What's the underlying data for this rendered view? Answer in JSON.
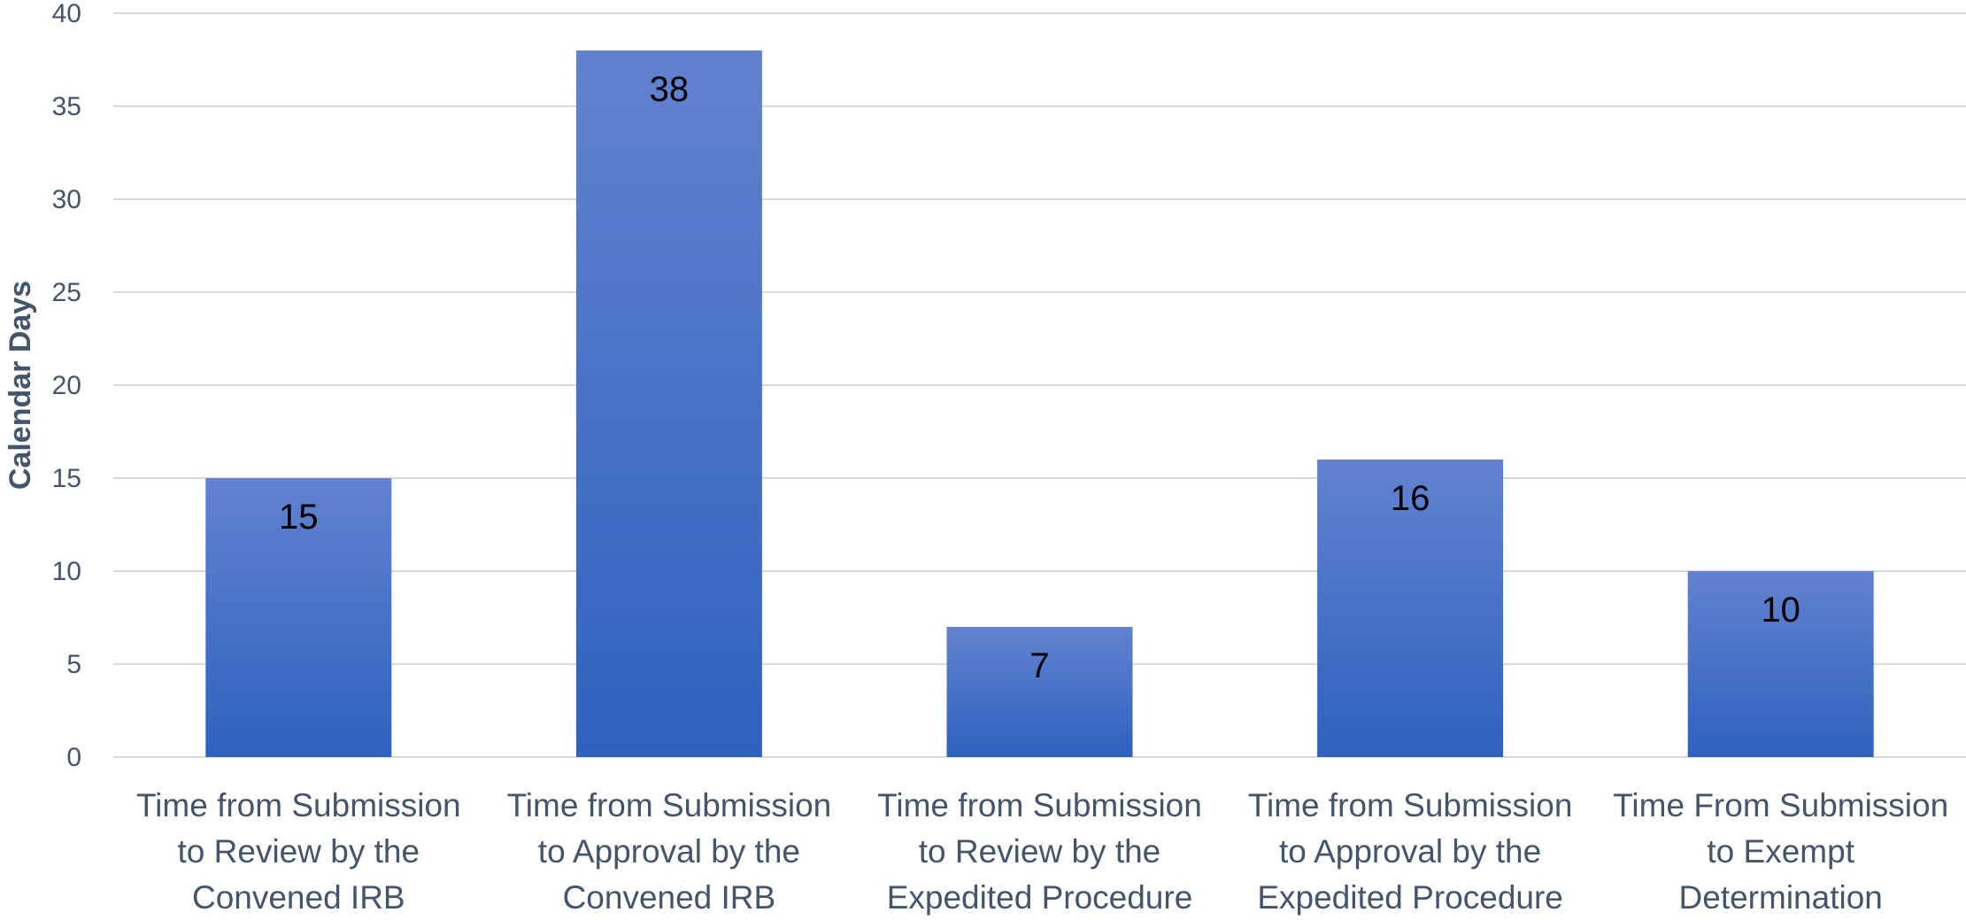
{
  "chart_data": {
    "type": "bar",
    "ylabel": "Calendar Days",
    "xlabel": "",
    "ylim": [
      0,
      40
    ],
    "y_ticks": [
      0,
      5,
      10,
      15,
      20,
      25,
      30,
      35,
      40
    ],
    "grid": true,
    "legend": "none",
    "categories": [
      [
        "Time from Submission",
        "to Review by the",
        "Convened IRB"
      ],
      [
        "Time from Submission",
        "to Approval by the",
        "Convened IRB"
      ],
      [
        "Time from Submission",
        "to Review by the",
        "Expedited Procedure"
      ],
      [
        "Time from Submission",
        "to Approval by the",
        "Expedited Procedure"
      ],
      [
        "Time From Submission",
        "to Exempt",
        "Determination"
      ]
    ],
    "values": [
      15,
      38,
      7,
      16,
      10
    ],
    "data_labels": [
      "15",
      "38",
      "7",
      "16",
      "10"
    ],
    "colors": {
      "bar_top": "#6282cf",
      "bar_bottom": "#2e62be",
      "axis_text": "#44546a",
      "gridline": "#d9d9d9",
      "data_label": "#000000"
    }
  }
}
